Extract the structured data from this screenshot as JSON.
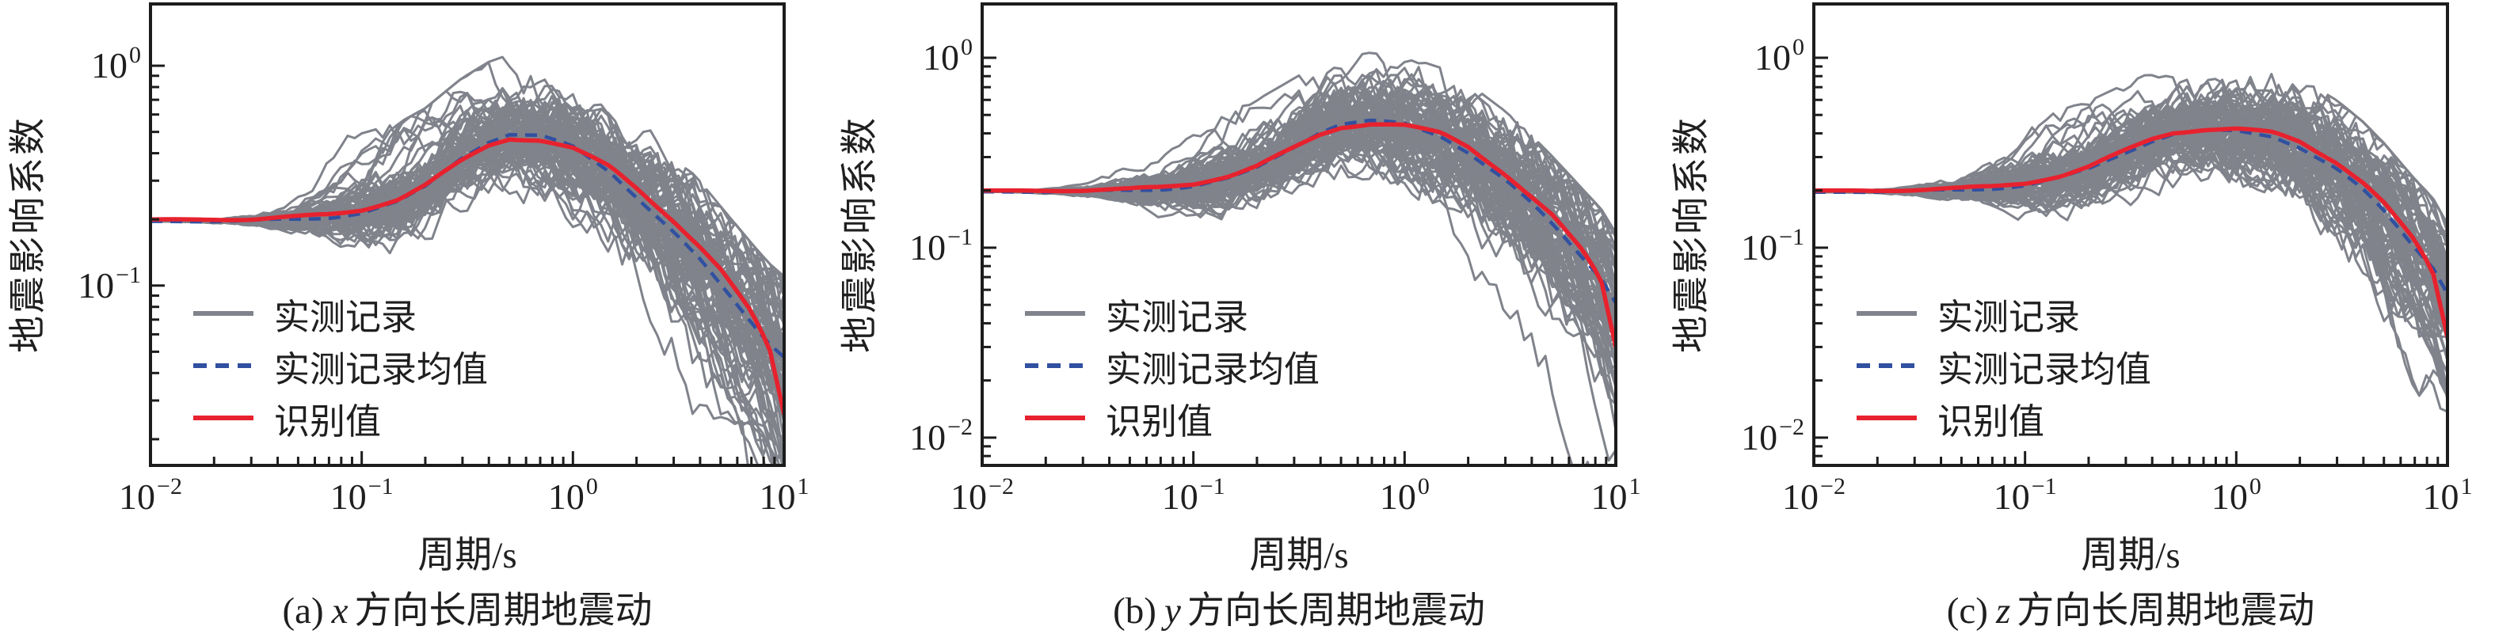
{
  "figure": {
    "background": "#ffffff",
    "axis_color": "#1c1c1c",
    "text_color": "#1f1f1f",
    "panel_count": 3
  },
  "chart_data": [
    {
      "type": "line",
      "x_scale": "log",
      "y_scale": "log",
      "xlabel": "周期/s",
      "ylabel": "地震影响系数",
      "caption_index": "(a)",
      "caption_var": "x",
      "caption_rest": "方向长周期地震动",
      "xlim": [
        0.01,
        10
      ],
      "ylim": [
        0.0152,
        1.91
      ],
      "x_tick_exponents": [
        -2,
        -1,
        0,
        1
      ],
      "y_tick_exponents": [
        0,
        -1
      ],
      "grid": false,
      "legend_position": "lower-left",
      "x_control": [
        0.01,
        0.02,
        0.03,
        0.05,
        0.07,
        0.1,
        0.15,
        0.2,
        0.3,
        0.4,
        0.5,
        0.7,
        1.0,
        1.5,
        2,
        3,
        4,
        5,
        7,
        8.5,
        10
      ],
      "series": [
        {
          "name": "实测记录",
          "role": "records",
          "color": "#80838B",
          "style": "solid",
          "count": 80,
          "seed": 101,
          "note": "ensemble of measured long-period record spectra, all starting near 0.2 and scattering up to ±0.5 decades at long periods"
        },
        {
          "name": "实测记录均值",
          "role": "mean",
          "color": "#3150A0",
          "style": "dashed",
          "values": [
            0.196,
            0.196,
            0.197,
            0.2,
            0.205,
            0.215,
            0.24,
            0.28,
            0.385,
            0.455,
            0.49,
            0.478,
            0.425,
            0.33,
            0.255,
            0.175,
            0.13,
            0.1,
            0.068,
            0.055,
            0.048
          ]
        },
        {
          "name": "识别值",
          "role": "identified",
          "color": "#E7222E",
          "style": "solid",
          "values": [
            0.2,
            0.2,
            0.2,
            0.205,
            0.21,
            0.222,
            0.248,
            0.285,
            0.37,
            0.435,
            0.468,
            0.462,
            0.42,
            0.345,
            0.278,
            0.198,
            0.15,
            0.118,
            0.075,
            0.052,
            0.026
          ]
        }
      ]
    },
    {
      "type": "line",
      "x_scale": "log",
      "y_scale": "log",
      "xlabel": "周期/s",
      "ylabel": "地震影响系数",
      "caption_index": "(b)",
      "caption_var": "y",
      "caption_rest": "方向长周期地震动",
      "xlim": [
        0.01,
        10
      ],
      "ylim": [
        0.00714,
        1.92
      ],
      "x_tick_exponents": [
        -2,
        -1,
        0,
        1
      ],
      "y_tick_exponents": [
        0,
        -1,
        -2
      ],
      "grid": false,
      "legend_position": "lower-left",
      "x_control": [
        0.01,
        0.02,
        0.03,
        0.05,
        0.07,
        0.1,
        0.15,
        0.2,
        0.3,
        0.4,
        0.5,
        0.7,
        1.0,
        1.5,
        2,
        3,
        4,
        5,
        7,
        8.5,
        10
      ],
      "series": [
        {
          "name": "实测记录",
          "role": "records",
          "color": "#80838B",
          "style": "solid",
          "count": 80,
          "seed": 202,
          "note": "ensemble of measured long-period record spectra"
        },
        {
          "name": "实测记录均值",
          "role": "mean",
          "color": "#3150A0",
          "style": "dashed",
          "values": [
            0.197,
            0.197,
            0.198,
            0.2,
            0.204,
            0.212,
            0.232,
            0.262,
            0.34,
            0.41,
            0.45,
            0.465,
            0.445,
            0.385,
            0.32,
            0.228,
            0.17,
            0.132,
            0.088,
            0.07,
            0.052
          ]
        },
        {
          "name": "识别值",
          "role": "identified",
          "color": "#E7222E",
          "style": "solid",
          "values": [
            0.2,
            0.2,
            0.2,
            0.203,
            0.208,
            0.218,
            0.24,
            0.268,
            0.335,
            0.395,
            0.432,
            0.452,
            0.44,
            0.398,
            0.34,
            0.245,
            0.185,
            0.148,
            0.095,
            0.068,
            0.03
          ]
        }
      ]
    },
    {
      "type": "line",
      "x_scale": "log",
      "y_scale": "log",
      "xlabel": "周期/s",
      "ylabel": "地震影响系数",
      "caption_index": "(c)",
      "caption_var": "z",
      "caption_rest": "方向长周期地震动",
      "xlim": [
        0.01,
        10
      ],
      "ylim": [
        0.00714,
        1.92
      ],
      "x_tick_exponents": [
        -2,
        -1,
        0,
        1
      ],
      "y_tick_exponents": [
        0,
        -1,
        -2
      ],
      "grid": false,
      "legend_position": "lower-left",
      "x_control": [
        0.01,
        0.02,
        0.03,
        0.05,
        0.07,
        0.1,
        0.15,
        0.2,
        0.3,
        0.4,
        0.5,
        0.7,
        1.0,
        1.5,
        2,
        3,
        4,
        5,
        7,
        8.5,
        10
      ],
      "series": [
        {
          "name": "实测记录",
          "role": "records",
          "color": "#80838B",
          "style": "solid",
          "count": 80,
          "seed": 303,
          "note": "ensemble of measured long-period record spectra"
        },
        {
          "name": "实测记录均值",
          "role": "mean",
          "color": "#3150A0",
          "style": "dashed",
          "values": [
            0.196,
            0.197,
            0.198,
            0.201,
            0.206,
            0.214,
            0.234,
            0.258,
            0.318,
            0.368,
            0.398,
            0.412,
            0.408,
            0.385,
            0.34,
            0.26,
            0.2,
            0.155,
            0.1,
            0.08,
            0.058
          ]
        },
        {
          "name": "识别值",
          "role": "identified",
          "color": "#E7222E",
          "style": "solid",
          "values": [
            0.2,
            0.2,
            0.201,
            0.205,
            0.21,
            0.22,
            0.24,
            0.265,
            0.325,
            0.375,
            0.405,
            0.42,
            0.42,
            0.402,
            0.362,
            0.282,
            0.22,
            0.172,
            0.108,
            0.075,
            0.034
          ]
        }
      ]
    }
  ]
}
